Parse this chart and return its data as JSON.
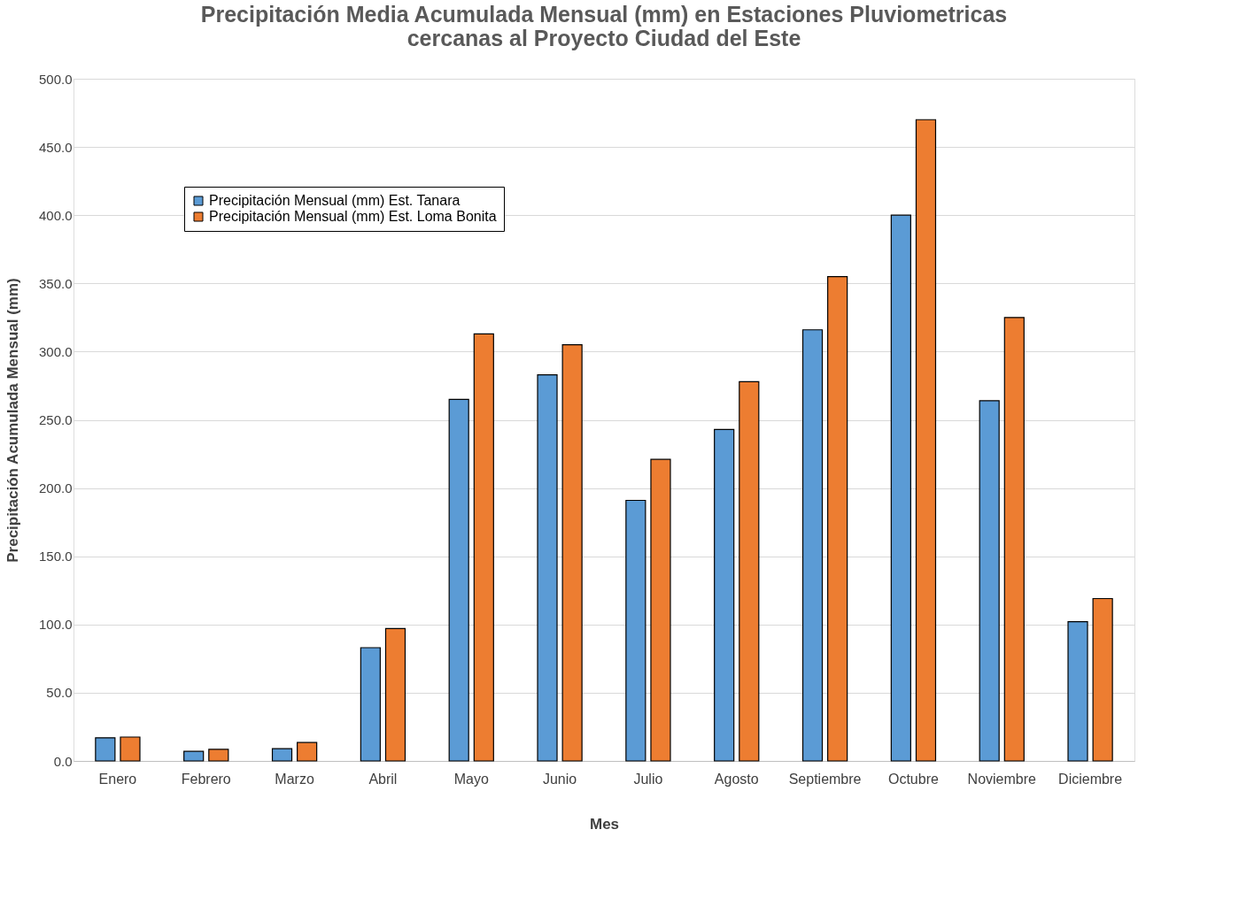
{
  "chart_data": {
    "type": "bar",
    "title": [
      "Precipitación Media Acumulada Mensual (mm) en Estaciones Pluviometricas",
      "cercanas al Proyecto Ciudad del Este"
    ],
    "xlabel": "Mes",
    "ylabel": "Precipitación Acumulada Mensual (mm)",
    "categories": [
      "Enero",
      "Febrero",
      "Marzo",
      "Abril",
      "Mayo",
      "Junio",
      "Julio",
      "Agosto",
      "Septiembre",
      "Octubre",
      "Noviembre",
      "Diciembre"
    ],
    "series": [
      {
        "name": "Precipitación Mensual (mm) Est. Tanara",
        "color": "#5b9bd5",
        "values": [
          17,
          7,
          9,
          83,
          265,
          283,
          191,
          243,
          316,
          400,
          264,
          102
        ]
      },
      {
        "name": "Precipitación Mensual (mm) Est. Loma Bonita",
        "color": "#ed7d31",
        "values": [
          17.5,
          8.5,
          13.5,
          97,
          313,
          305,
          221,
          278,
          355,
          470,
          325,
          119
        ]
      }
    ],
    "ylim": [
      0,
      500
    ],
    "yticks": [
      {
        "value": 0,
        "label": "0.0"
      },
      {
        "value": 50,
        "label": "50.0"
      },
      {
        "value": 100,
        "label": "100.0"
      },
      {
        "value": 150,
        "label": "150.0"
      },
      {
        "value": 200,
        "label": "200.0"
      },
      {
        "value": 250,
        "label": "250.0"
      },
      {
        "value": 300,
        "label": "300.0"
      },
      {
        "value": 350,
        "label": "350.0"
      },
      {
        "value": 400,
        "label": "400.0"
      },
      {
        "value": 450,
        "label": "450.0"
      },
      {
        "value": 500,
        "label": "500.0"
      }
    ],
    "grid": "y",
    "legend": "top left"
  }
}
